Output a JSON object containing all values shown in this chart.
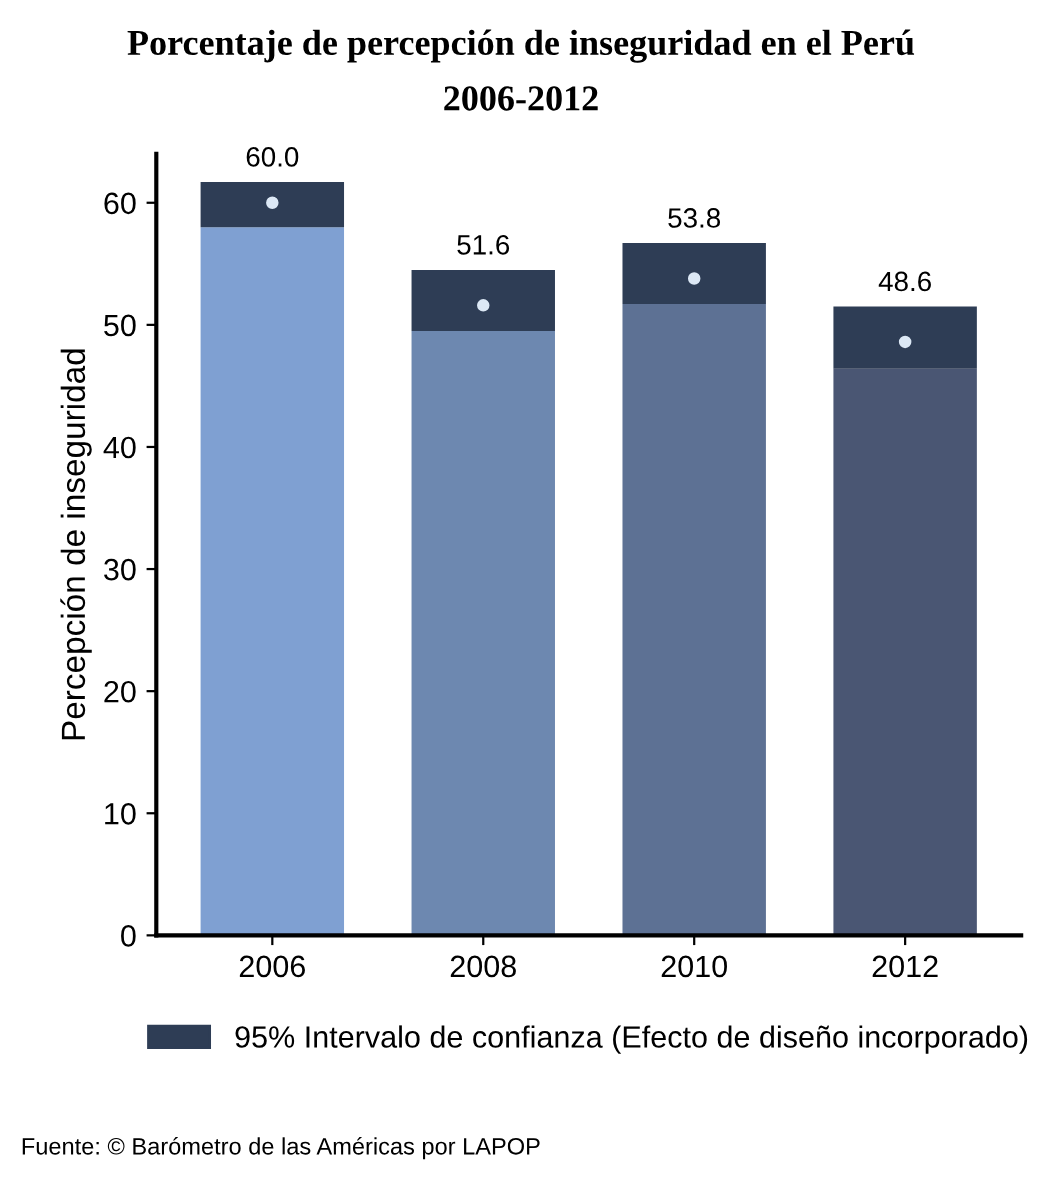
{
  "chart_data": {
    "type": "bar",
    "title": "Porcentaje de percepción de inseguridad en el Perú\n2006-2012",
    "ylabel": "Percepción de inseguridad",
    "categories": [
      "2006",
      "2008",
      "2010",
      "2012"
    ],
    "stacked": true,
    "series": [
      {
        "values": [
          58.0,
          49.5,
          51.7,
          46.4
        ],
        "colors": [
          "#7fa0d2",
          "#6d88b0",
          "#5d7194",
          "#4a5673"
        ]
      },
      {
        "name": "95% Intervalo de confianza (Efecto de diseño incorporado)",
        "color": "#2e3d55",
        "values": [
          3.7,
          5.0,
          5.0,
          5.1
        ]
      },
      {
        "type": "scatter",
        "color": "#dce8f5",
        "marker": "circle",
        "values": [
          60.0,
          51.6,
          53.8,
          48.6
        ],
        "value_labels": [
          "60.0",
          "51.6",
          "53.8",
          "48.6"
        ]
      }
    ],
    "ylim": [
      0,
      64
    ],
    "yticks": [
      0,
      10,
      20,
      30,
      40,
      50,
      60
    ],
    "grid": false,
    "legend": "bottom",
    "annotations": [
      "Fuente: © Barómetro de las Américas por LAPOP"
    ]
  }
}
